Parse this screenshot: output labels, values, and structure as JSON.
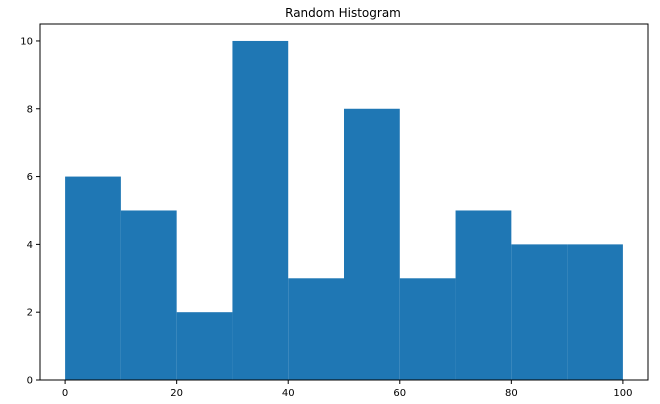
{
  "chart_data": {
    "type": "bar",
    "title": "Random Histogram",
    "xlabel": "",
    "ylabel": "",
    "bin_edges": [
      0,
      10,
      20,
      30,
      40,
      50,
      60,
      70,
      80,
      90,
      100
    ],
    "values": [
      6,
      5,
      2,
      10,
      3,
      8,
      3,
      5,
      4,
      4
    ],
    "xlim": [
      -4.5,
      104.5
    ],
    "ylim": [
      0,
      10.5
    ],
    "xticks": [
      0,
      20,
      40,
      60,
      80,
      100
    ],
    "yticks": [
      0,
      2,
      4,
      6,
      8,
      10
    ],
    "bar_color": "#1f77b4",
    "grid": false,
    "legend": "none"
  }
}
